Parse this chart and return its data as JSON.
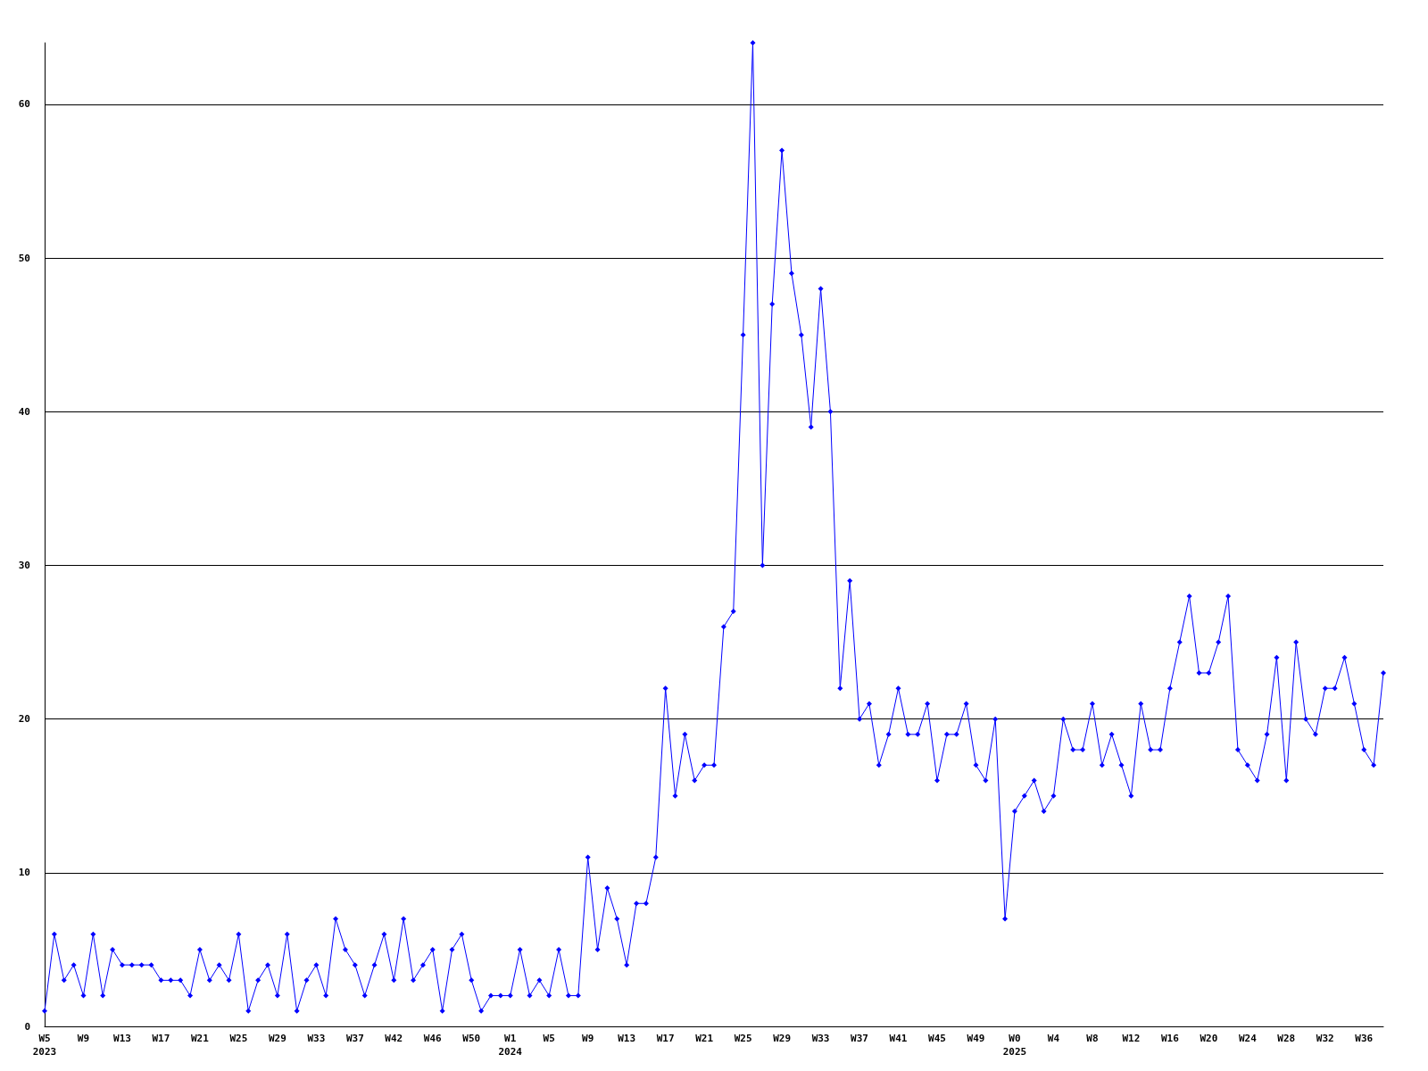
{
  "chart_data": {
    "type": "line",
    "categories": [
      "W5\n2023",
      null,
      null,
      null,
      "W9",
      null,
      null,
      null,
      "W13",
      null,
      null,
      null,
      "W17",
      null,
      null,
      null,
      "W21",
      null,
      null,
      null,
      "W25",
      null,
      null,
      null,
      "W29",
      null,
      null,
      null,
      "W33",
      null,
      null,
      null,
      "W37",
      null,
      null,
      null,
      "W42",
      null,
      null,
      null,
      "W46",
      null,
      null,
      null,
      "W50",
      null,
      null,
      null,
      "W1\n2024",
      null,
      null,
      null,
      "W5",
      null,
      null,
      null,
      "W9",
      null,
      null,
      null,
      "W13",
      null,
      null,
      null,
      "W17",
      null,
      null,
      null,
      "W21",
      null,
      null,
      null,
      "W25",
      null,
      null,
      null,
      "W29",
      null,
      null,
      null,
      "W33",
      null,
      null,
      null,
      "W37",
      null,
      null,
      null,
      "W41",
      null,
      null,
      null,
      "W45",
      null,
      null,
      null,
      "W49",
      null,
      null,
      null,
      "W0\n2025",
      null,
      null,
      null,
      "W4",
      null,
      null,
      null,
      "W8",
      null,
      null,
      null,
      "W12",
      null,
      null,
      null,
      "W16",
      null,
      null,
      null,
      "W20",
      null,
      null,
      null,
      "W24",
      null,
      null,
      null,
      "W28",
      null,
      null,
      null,
      "W32",
      null,
      null,
      null,
      "W36",
      null,
      null
    ],
    "series": [
      {
        "color": "#0000ff",
        "values": [
          1,
          6,
          3,
          4,
          2,
          6,
          2,
          5,
          4,
          4,
          4,
          4,
          3,
          3,
          3,
          2,
          5,
          3,
          4,
          3,
          6,
          1,
          3,
          4,
          2,
          6,
          1,
          3,
          4,
          2,
          7,
          5,
          4,
          2,
          4,
          6,
          3,
          7,
          3,
          4,
          5,
          1,
          5,
          6,
          3,
          1,
          2,
          2,
          2,
          5,
          2,
          3,
          2,
          5,
          2,
          2,
          11,
          5,
          9,
          7,
          4,
          8,
          8,
          11,
          22,
          15,
          19,
          16,
          17,
          17,
          26,
          27,
          45,
          64,
          30,
          47,
          57,
          49,
          45,
          39,
          48,
          40,
          22,
          29,
          20,
          21,
          17,
          19,
          22,
          19,
          19,
          21,
          16,
          19,
          19,
          21,
          17,
          16,
          20,
          7,
          14,
          15,
          16,
          14,
          15,
          20,
          18,
          18,
          21,
          17,
          19,
          17,
          15,
          21,
          18,
          18,
          22,
          25,
          28,
          23,
          23,
          25,
          28,
          18,
          17,
          16,
          19,
          24,
          16,
          25,
          20,
          19,
          22,
          22,
          24,
          21,
          18,
          17,
          23
        ]
      }
    ],
    "ylim": [
      0,
      64
    ],
    "yticks": [
      0,
      10,
      20,
      30,
      40,
      50,
      60
    ],
    "grid": "y",
    "marker": "diamond",
    "line_style": "solid"
  }
}
